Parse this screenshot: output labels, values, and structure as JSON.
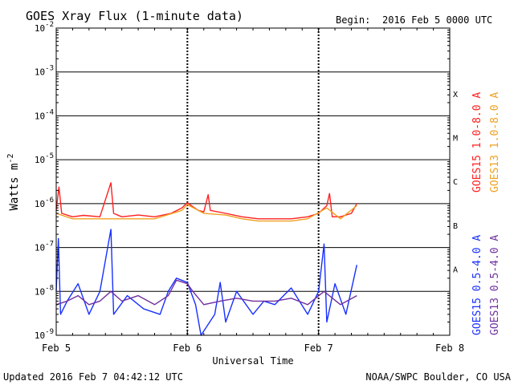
{
  "chart_data": {
    "type": "line",
    "title": "GOES Xray Flux (1-minute data)",
    "begin_label": "Begin:",
    "begin_value": "2016 Feb 5 0000 UTC",
    "xlabel": "Universal Time",
    "ylabel_base": "Watts m",
    "ylabel_exp": "-2",
    "x_ticks": [
      "Feb 5",
      "Feb 6",
      "Feb 7",
      "Feb 8"
    ],
    "xlim": [
      0,
      72
    ],
    "x_unit": "hours since 2016 Feb 5 0000 UTC",
    "ylim": [
      1e-09,
      0.01
    ],
    "y_scale": "log",
    "y_ticks": [
      {
        "base": "10",
        "exp": "-9",
        "value": 1e-09
      },
      {
        "base": "10",
        "exp": "-8",
        "value": 1e-08
      },
      {
        "base": "10",
        "exp": "-7",
        "value": 1e-07
      },
      {
        "base": "10",
        "exp": "-6",
        "value": 1e-06
      },
      {
        "base": "10",
        "exp": "-5",
        "value": 1e-05
      },
      {
        "base": "10",
        "exp": "-4",
        "value": 0.0001
      },
      {
        "base": "10",
        "exp": "-3",
        "value": 0.001
      },
      {
        "base": "10",
        "exp": "-2",
        "value": 0.01
      }
    ],
    "flare_classes": [
      {
        "label": "X",
        "value": 0.00032
      },
      {
        "label": "M",
        "value": 3.2e-05
      },
      {
        "label": "C",
        "value": 3.2e-06
      },
      {
        "label": "B",
        "value": 3.2e-07
      },
      {
        "label": "A",
        "value": 3.2e-08
      }
    ],
    "series": [
      {
        "name": "GOES15 1.0-8.0 A",
        "color": "#ff2020",
        "points": [
          [
            0,
            7e-07
          ],
          [
            0.5,
            2.4e-06
          ],
          [
            1.0,
            6e-07
          ],
          [
            3,
            5e-07
          ],
          [
            5,
            5.4e-07
          ],
          [
            8,
            5e-07
          ],
          [
            10,
            3e-06
          ],
          [
            10.5,
            6e-07
          ],
          [
            12,
            5e-07
          ],
          [
            15,
            5.5e-07
          ],
          [
            18,
            5e-07
          ],
          [
            21,
            6e-07
          ],
          [
            23,
            8e-07
          ],
          [
            24,
            1.05e-06
          ],
          [
            25,
            8.5e-07
          ],
          [
            26,
            7e-07
          ],
          [
            27,
            6.5e-07
          ],
          [
            27.8,
            1.6e-06
          ],
          [
            28.2,
            7e-07
          ],
          [
            31,
            6e-07
          ],
          [
            34,
            5e-07
          ],
          [
            37,
            4.5e-07
          ],
          [
            40,
            4.5e-07
          ],
          [
            43,
            4.5e-07
          ],
          [
            46,
            5e-07
          ],
          [
            48,
            6e-07
          ],
          [
            49.5,
            9e-07
          ],
          [
            50,
            1.7e-06
          ],
          [
            50.5,
            5e-07
          ],
          [
            52,
            5e-07
          ],
          [
            54,
            6e-07
          ],
          [
            55,
            1e-06
          ]
        ]
      },
      {
        "name": "GOES13 1.0-8.0 A",
        "color": "#f0a020",
        "points": [
          [
            0,
            6e-07
          ],
          [
            3,
            4.5e-07
          ],
          [
            8,
            4.5e-07
          ],
          [
            12,
            4.5e-07
          ],
          [
            18,
            4.5e-07
          ],
          [
            23,
            7e-07
          ],
          [
            24,
            9.5e-07
          ],
          [
            27,
            6e-07
          ],
          [
            31,
            5.5e-07
          ],
          [
            34,
            4.5e-07
          ],
          [
            37,
            4e-07
          ],
          [
            40,
            4e-07
          ],
          [
            43,
            4e-07
          ],
          [
            46,
            4.5e-07
          ],
          [
            49.5,
            8e-07
          ],
          [
            52,
            4.5e-07
          ],
          [
            55,
            9e-07
          ]
        ]
      },
      {
        "name": "GOES15 0.5-4.0 A",
        "color": "#1830ff",
        "points": [
          [
            0,
            1e-08
          ],
          [
            0.4,
            1.6e-07
          ],
          [
            0.8,
            3e-09
          ],
          [
            2,
            6e-09
          ],
          [
            4,
            1.5e-08
          ],
          [
            6,
            3e-09
          ],
          [
            8,
            1e-08
          ],
          [
            10,
            2.6e-07
          ],
          [
            10.5,
            3e-09
          ],
          [
            13,
            8e-09
          ],
          [
            16,
            4e-09
          ],
          [
            19,
            3e-09
          ],
          [
            20.5,
            1e-08
          ],
          [
            22,
            2e-08
          ],
          [
            24,
            1.6e-08
          ],
          [
            25.5,
            5e-09
          ],
          [
            26.5,
            1e-09
          ],
          [
            29,
            3e-09
          ],
          [
            30,
            1.6e-08
          ],
          [
            31,
            2e-09
          ],
          [
            33,
            1e-08
          ],
          [
            36,
            3e-09
          ],
          [
            38,
            6e-09
          ],
          [
            40,
            5e-09
          ],
          [
            43,
            1.2e-08
          ],
          [
            46,
            3e-09
          ],
          [
            48,
            1e-08
          ],
          [
            49,
            1.2e-07
          ],
          [
            49.5,
            2e-09
          ],
          [
            51,
            1.5e-08
          ],
          [
            53,
            3e-09
          ],
          [
            55,
            4e-08
          ]
        ]
      },
      {
        "name": "GOES13 0.5-4.0 A",
        "color": "#7030a0",
        "points": [
          [
            0,
            5e-09
          ],
          [
            2,
            6e-09
          ],
          [
            4,
            8e-09
          ],
          [
            6,
            5e-09
          ],
          [
            8,
            6e-09
          ],
          [
            10,
            1e-08
          ],
          [
            12,
            6e-09
          ],
          [
            15,
            8e-09
          ],
          [
            18,
            5e-09
          ],
          [
            20.5,
            8e-09
          ],
          [
            22,
            1.8e-08
          ],
          [
            24,
            1.5e-08
          ],
          [
            25,
            1e-08
          ],
          [
            27,
            5e-09
          ],
          [
            30,
            6e-09
          ],
          [
            33,
            7e-09
          ],
          [
            36,
            6e-09
          ],
          [
            40,
            6e-09
          ],
          [
            43,
            7e-09
          ],
          [
            46,
            5e-09
          ],
          [
            49,
            1e-08
          ],
          [
            52,
            5e-09
          ],
          [
            55,
            8e-09
          ]
        ]
      }
    ]
  },
  "footer": {
    "updated": "Updated 2016 Feb  7 04:42:12 UTC",
    "credit": "NOAA/SWPC Boulder, CO USA"
  }
}
